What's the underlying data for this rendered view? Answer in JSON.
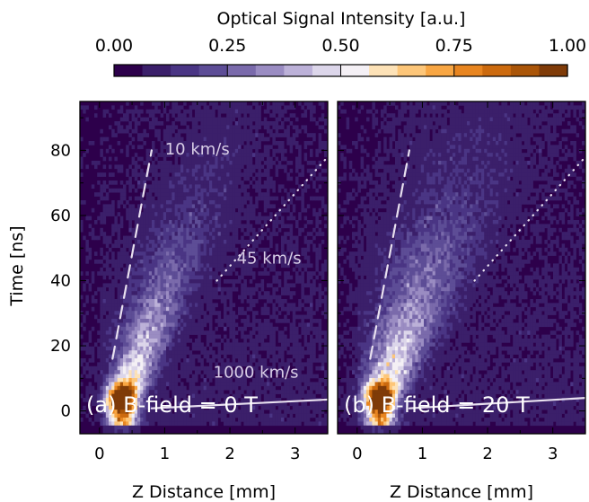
{
  "chart_data": {
    "type": "heatmap",
    "colorbar": {
      "label": "Optical Signal Intensity [a.u.]",
      "ticks": [
        "0.00",
        "0.25",
        "0.50",
        "0.75",
        "1.00"
      ],
      "range": [
        0,
        1
      ],
      "levels": 16,
      "position": "top",
      "colors": [
        "#2d004b",
        "#3b1f6a",
        "#4a3584",
        "#5d4d96",
        "#7a6aab",
        "#9a8cc2",
        "#bcb1d8",
        "#dcd6ea",
        "#f4f0f5",
        "#fde2b7",
        "#fdc679",
        "#f8a643",
        "#e88520",
        "#cc6a0e",
        "#aa5508",
        "#7f3b08"
      ]
    },
    "ylabel": "Time [ns]",
    "ylim": [
      95,
      -7
    ],
    "yticks": [
      "0",
      "20",
      "40",
      "60",
      "80"
    ],
    "xlim": [
      -0.3,
      3.5
    ],
    "xticks": [
      "0",
      "1",
      "2",
      "3"
    ],
    "panels": [
      {
        "xlabel": "Z Distance [mm]",
        "label": "(a) B-field = 0 T",
        "spread": 0.18,
        "tail": 0.6,
        "annotations": [
          {
            "text": "1000 km/s",
            "style": "solid",
            "x": [
              0.8,
              3.5
            ],
            "y": [
              0.8,
              3.5
            ]
          },
          {
            "text": "45 km/s",
            "style": "dotted",
            "x": [
              1.8,
              3.5
            ],
            "y": [
              40,
              78
            ]
          },
          {
            "text": "10 km/s",
            "style": "dashed",
            "x": [
              0.2,
              0.8
            ],
            "y": [
              16,
              80
            ]
          }
        ]
      },
      {
        "xlabel": "Z Distance [mm]",
        "label": "(b) B-field = 20 T",
        "spread": 0.26,
        "tail": 0.85,
        "annotations": [
          {
            "style": "solid",
            "x": [
              0.8,
              3.5
            ],
            "y": [
              0.8,
              4
            ]
          },
          {
            "style": "dotted",
            "x": [
              1.8,
              3.5
            ],
            "y": [
              40,
              78
            ]
          },
          {
            "style": "dashed",
            "x": [
              0.2,
              0.8
            ],
            "y": [
              16,
              80
            ]
          }
        ]
      }
    ]
  }
}
